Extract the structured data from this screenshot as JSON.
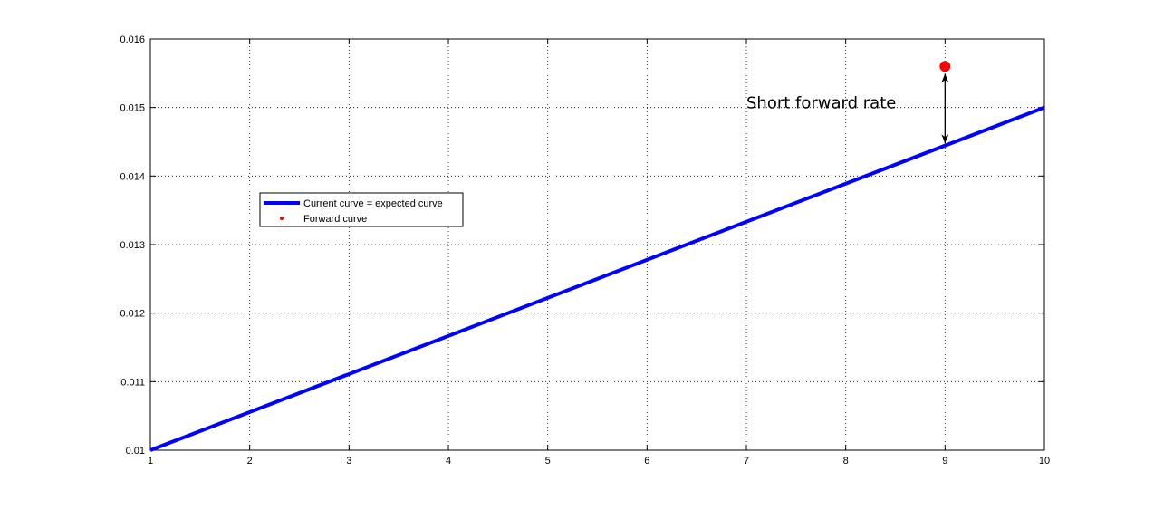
{
  "chart_data": {
    "type": "line",
    "title": "",
    "xlabel": "",
    "ylabel": "",
    "xlim": [
      1,
      10
    ],
    "ylim": [
      0.01,
      0.016
    ],
    "grid": true,
    "legend_placement": "upper-left",
    "x_ticks": [
      "1",
      "2",
      "3",
      "4",
      "5",
      "6",
      "7",
      "8",
      "9",
      "10"
    ],
    "x_tick_values": [
      1,
      2,
      3,
      4,
      5,
      6,
      7,
      8,
      9,
      10
    ],
    "y_ticks": [
      "0.01",
      "0.011",
      "0.012",
      "0.013",
      "0.014",
      "0.015",
      "0.016"
    ],
    "y_tick_values": [
      0.01,
      0.011,
      0.012,
      0.013,
      0.014,
      0.015,
      0.016
    ],
    "series": [
      {
        "name": "Current curve = expected curve",
        "kind": "line",
        "color": "#0000ff",
        "x": [
          1,
          10
        ],
        "y": [
          0.01,
          0.015
        ]
      },
      {
        "name": "Forward curve",
        "kind": "point",
        "color": "#ff0000",
        "x": [
          9
        ],
        "y": [
          0.0156
        ]
      }
    ],
    "annotations": [
      {
        "text": "Short forward rate",
        "arrow_x": 9,
        "arrow_y_from": 0.01445,
        "arrow_y_to": 0.0156,
        "text_x": 7,
        "text_y": 0.01495
      }
    ]
  }
}
